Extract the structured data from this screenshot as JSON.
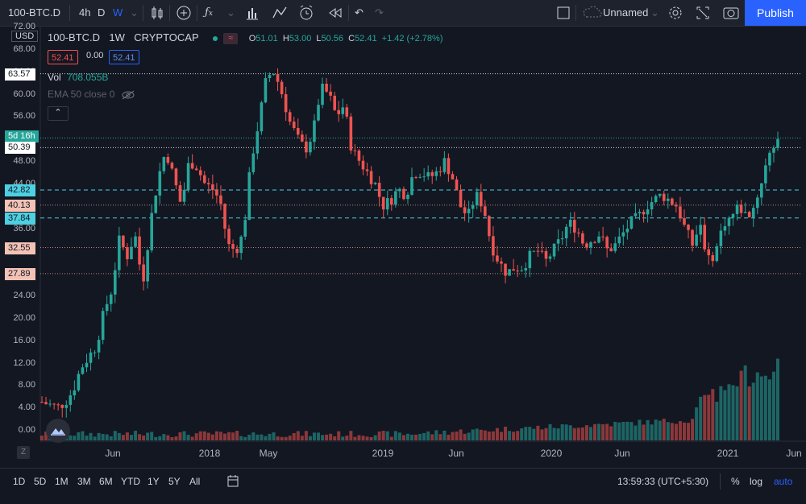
{
  "toolbar": {
    "symbol": "100-BTC.D",
    "intervals": [
      "4h",
      "D",
      "W"
    ],
    "active_interval": "W",
    "layout_name": "Unnamed",
    "publish_label": "Publish"
  },
  "legend": {
    "title": "100-BTC.D",
    "interval": "1W",
    "exchange": "CRYPTOCAP",
    "open_label": "O",
    "open": "51.01",
    "high_label": "H",
    "high": "53.00",
    "low_label": "L",
    "low": "50.56",
    "close_label": "C",
    "close": "52.41",
    "change": "+1.42 (+2.78%)",
    "sell_price": "52.41",
    "spread": "0.00",
    "buy_price": "52.41",
    "volume_label": "Vol",
    "volume": "708.055B",
    "indicator": "EMA 50 close 0"
  },
  "price_scale": {
    "currency": "USD",
    "ticks": [
      "72.00",
      "68.00",
      "64.00",
      "60.00",
      "56.00",
      "52.00",
      "48.00",
      "44.00",
      "40.00",
      "36.00",
      "32.00",
      "28.00",
      "24.00",
      "20.00",
      "16.00",
      "12.00",
      "8.00",
      "4.00",
      "0.00"
    ],
    "levels": [
      {
        "label": "63.57",
        "style": "white"
      },
      {
        "label": "5d 16h",
        "style": "green"
      },
      {
        "label": "50.39",
        "style": "white"
      },
      {
        "label": "42.82",
        "style": "cyan"
      },
      {
        "label": "40.13",
        "style": "red"
      },
      {
        "label": "37.84",
        "style": "cyan"
      },
      {
        "label": "32.55",
        "style": "red"
      },
      {
        "label": "27.89",
        "style": "red"
      }
    ]
  },
  "time_scale": {
    "labels": [
      "Jun",
      "2018",
      "May",
      "2019",
      "Jun",
      "2020",
      "Jun",
      "2021",
      "Jun"
    ]
  },
  "bottombar": {
    "ranges": [
      "1D",
      "5D",
      "1M",
      "3M",
      "6M",
      "YTD",
      "1Y",
      "5Y",
      "All"
    ],
    "clock": "13:59:33 (UTC+5:30)",
    "percent": "%",
    "log": "log",
    "auto": "auto"
  },
  "colors": {
    "up": "#26a69a",
    "down": "#ef5350",
    "accent": "#2962ff"
  },
  "chart_data": {
    "type": "candlestick",
    "title": "100-BTC.D",
    "ylabel": "USD",
    "ylim": [
      0,
      72
    ],
    "price_path": [
      5,
      4.5,
      4,
      5,
      7,
      11,
      13,
      15,
      21,
      25,
      34,
      31,
      35,
      26,
      37,
      45,
      50,
      45,
      40,
      48,
      47,
      44,
      43,
      41,
      33,
      32,
      35,
      48,
      55,
      63,
      64,
      60,
      55,
      52,
      50,
      53,
      61,
      60,
      56,
      58,
      50,
      48,
      46,
      44,
      40,
      41,
      43,
      42,
      46,
      46,
      45,
      46,
      48,
      45,
      40,
      38,
      42,
      40,
      33,
      30,
      28,
      29,
      29,
      31,
      32,
      30,
      32,
      34,
      37,
      36,
      33,
      34,
      35,
      32,
      33,
      35,
      37,
      38,
      40,
      41,
      42,
      41,
      40,
      36,
      33,
      37,
      30,
      32,
      37,
      38,
      40,
      38,
      40,
      45,
      50,
      52
    ]
  }
}
